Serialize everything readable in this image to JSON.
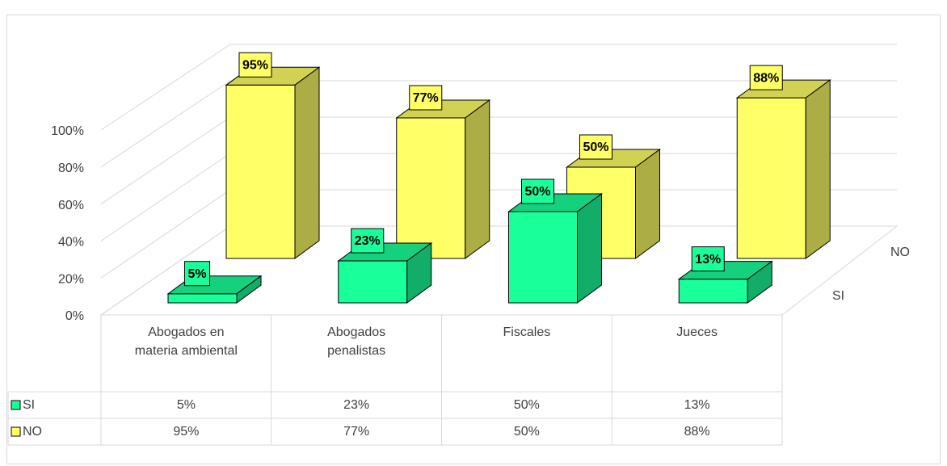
{
  "chart_data": {
    "type": "bar3d",
    "categories": [
      "Abogados en materia ambiental",
      "Abogados penalistas",
      "Fiscales",
      "Jueces"
    ],
    "series": [
      {
        "name": "SI",
        "color": "#19ff9a",
        "values": [
          5,
          23,
          50,
          13
        ],
        "value_labels": [
          "5%",
          "23%",
          "50%",
          "13%"
        ]
      },
      {
        "name": "NO",
        "color": "#ffff66",
        "values": [
          95,
          77,
          50,
          88
        ],
        "value_labels": [
          "95%",
          "77%",
          "50%",
          "88%"
        ]
      }
    ],
    "ylim": [
      0,
      100
    ],
    "yticks": [
      {
        "value": 0,
        "label": "0%"
      },
      {
        "value": 20,
        "label": "20%"
      },
      {
        "value": 40,
        "label": "40%"
      },
      {
        "value": 60,
        "label": "60%"
      },
      {
        "value": 80,
        "label": "80%"
      },
      {
        "value": 100,
        "label": "100%"
      }
    ],
    "grid": true,
    "data_table": true
  }
}
